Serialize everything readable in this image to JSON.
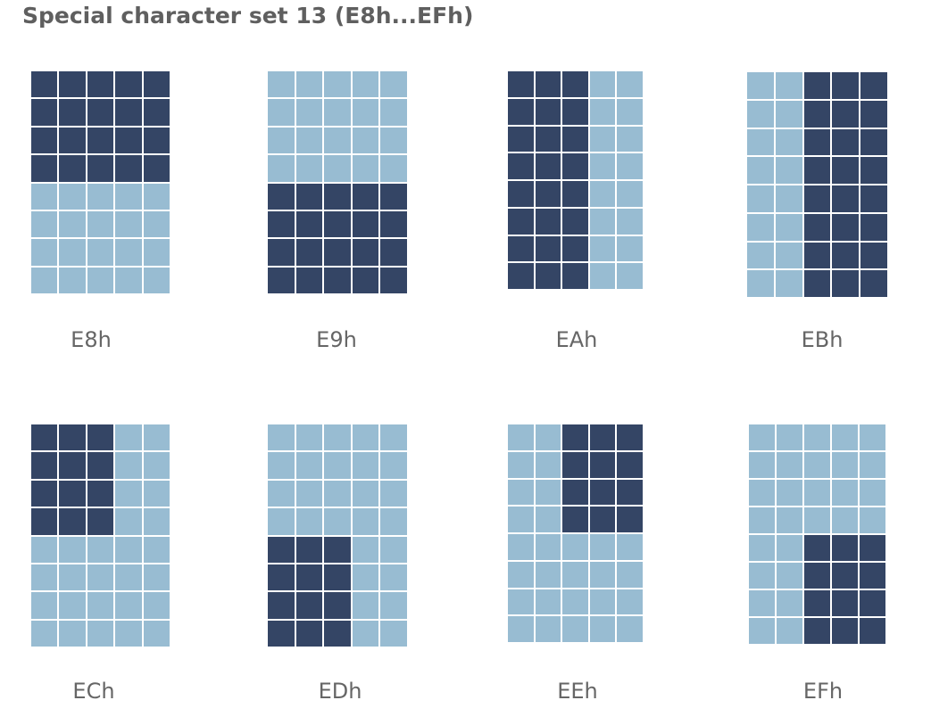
{
  "title": "Special character set 13 (E8h...EFh)",
  "colors": {
    "on": "#344565",
    "off": "#98bcd2",
    "title": "#5f5f5f",
    "label": "#666666"
  },
  "grid": {
    "columns": 5,
    "rows": 8
  },
  "characters": [
    {
      "label": "E8h",
      "rows": [
        "11111",
        "11111",
        "11111",
        "11111",
        "00000",
        "00000",
        "00000",
        "00000"
      ]
    },
    {
      "label": "E9h",
      "rows": [
        "00000",
        "00000",
        "00000",
        "00000",
        "11111",
        "11111",
        "11111",
        "11111"
      ]
    },
    {
      "label": "EAh",
      "rows": [
        "11100",
        "11100",
        "11100",
        "11100",
        "11100",
        "11100",
        "11100",
        "11100"
      ]
    },
    {
      "label": "EBh",
      "rows": [
        "00111",
        "00111",
        "00111",
        "00111",
        "00111",
        "00111",
        "00111",
        "00111"
      ]
    },
    {
      "label": "ECh",
      "rows": [
        "11100",
        "11100",
        "11100",
        "11100",
        "00000",
        "00000",
        "00000",
        "00000"
      ]
    },
    {
      "label": "EDh",
      "rows": [
        "00000",
        "00000",
        "00000",
        "00000",
        "11100",
        "11100",
        "11100",
        "11100"
      ]
    },
    {
      "label": "EEh",
      "rows": [
        "00111",
        "00111",
        "00111",
        "00111",
        "00000",
        "00000",
        "00000",
        "00000"
      ]
    },
    {
      "label": "EFh",
      "rows": [
        "00000",
        "00000",
        "00000",
        "00000",
        "00111",
        "00111",
        "00111",
        "00111"
      ]
    }
  ]
}
